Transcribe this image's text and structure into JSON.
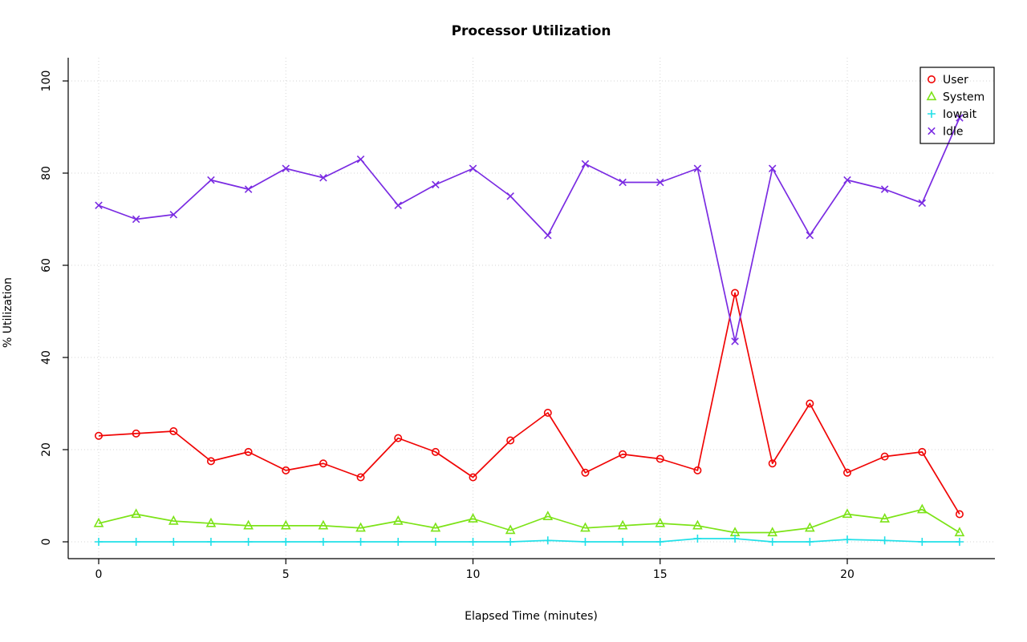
{
  "title": "Processor Utilization",
  "chart_data": {
    "type": "line",
    "title": "Processor Utilization",
    "xlabel": "Elapsed Time (minutes)",
    "ylabel": "% Utilization",
    "xlim": [
      0,
      23
    ],
    "ylim": [
      0,
      100
    ],
    "xticks": [
      0,
      5,
      10,
      15,
      20
    ],
    "yticks": [
      0,
      20,
      40,
      60,
      80,
      100
    ],
    "grid": true,
    "legend_position": "top-right",
    "x": [
      0,
      1,
      2,
      3,
      4,
      5,
      6,
      7,
      8,
      9,
      10,
      11,
      12,
      13,
      14,
      15,
      16,
      17,
      18,
      19,
      20,
      21,
      22,
      23
    ],
    "series": [
      {
        "name": "User",
        "color": "#f00505",
        "marker": "circle",
        "values": [
          23,
          23.5,
          24,
          17.5,
          19.5,
          15.5,
          17,
          14,
          22.5,
          19.5,
          14,
          22,
          28,
          15,
          19,
          18,
          15.5,
          54,
          17,
          30,
          15,
          18.5,
          19.5,
          6
        ]
      },
      {
        "name": "System",
        "color": "#7ce317",
        "marker": "triangle",
        "values": [
          4,
          6,
          4.5,
          4,
          3.5,
          3.5,
          3.5,
          3,
          4.5,
          3,
          5,
          2.5,
          5.5,
          3,
          3.5,
          4,
          3.5,
          2,
          2,
          3,
          6,
          5,
          7,
          2
        ]
      },
      {
        "name": "Iowait",
        "color": "#21e0e8",
        "marker": "plus",
        "values": [
          0,
          0,
          0,
          0,
          0,
          0,
          0,
          0,
          0,
          0,
          0,
          0,
          0.3,
          0,
          0,
          0,
          0.7,
          0.7,
          0,
          0,
          0.5,
          0.3,
          0,
          0
        ]
      },
      {
        "name": "Idle",
        "color": "#7a2be2",
        "marker": "x",
        "values": [
          73,
          70,
          71,
          78.5,
          76.5,
          81,
          79,
          83,
          73,
          77.5,
          81,
          75,
          66.5,
          82,
          78,
          78,
          81,
          43.5,
          81,
          66.5,
          78.5,
          76.5,
          73.5,
          92
        ]
      }
    ]
  }
}
